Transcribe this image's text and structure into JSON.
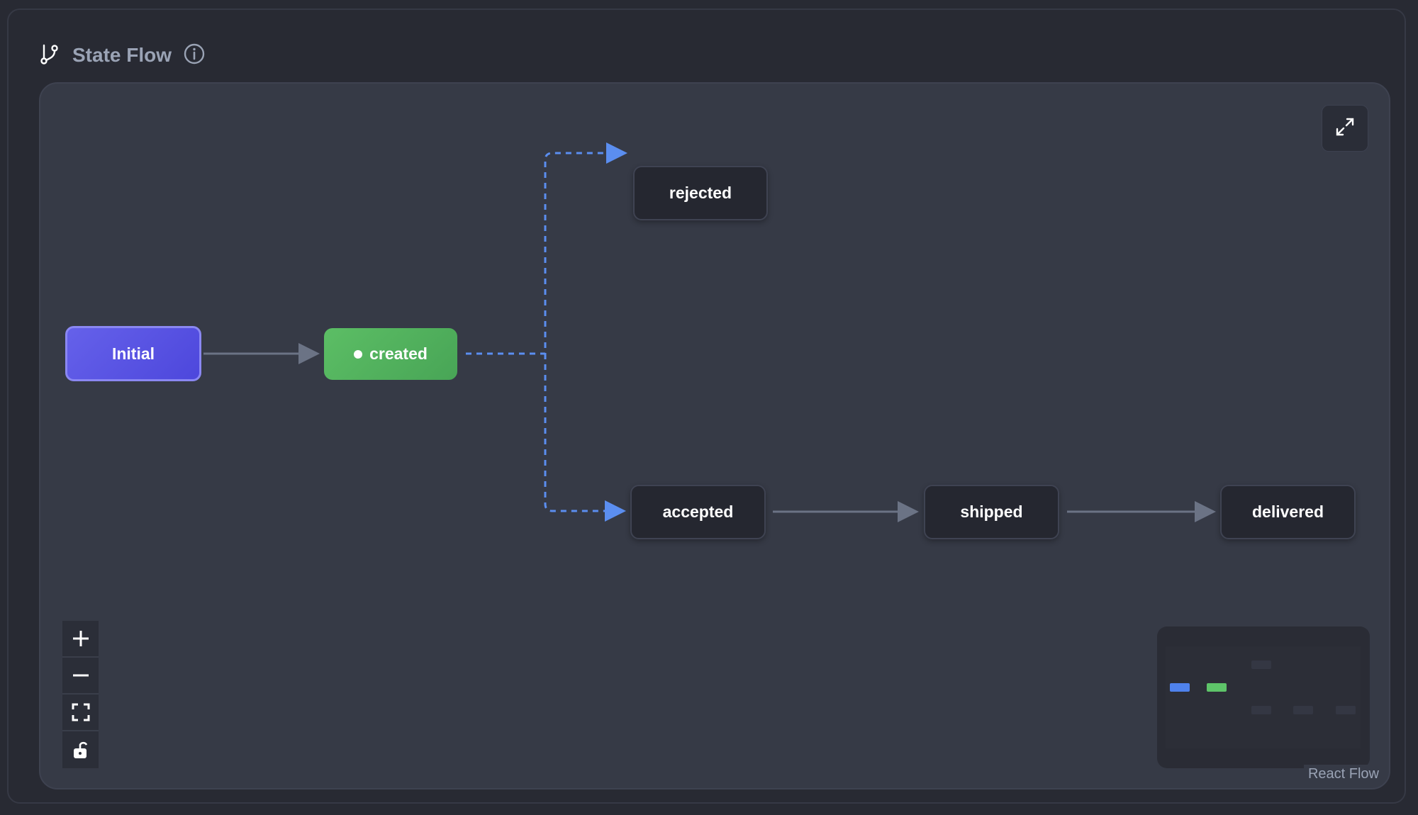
{
  "header": {
    "title": "State Flow",
    "icon": "git-branch-icon",
    "info_icon": "info-icon"
  },
  "nodes": [
    {
      "id": "initial",
      "label": "Initial",
      "color": "#5b57e3"
    },
    {
      "id": "created",
      "label": "created",
      "color": "#52b45e",
      "current": true
    },
    {
      "id": "rejected",
      "label": "rejected"
    },
    {
      "id": "accepted",
      "label": "accepted"
    },
    {
      "id": "shipped",
      "label": "shipped"
    },
    {
      "id": "delivered",
      "label": "delivered"
    }
  ],
  "edges": [
    {
      "from": "initial",
      "to": "created",
      "style": "solid"
    },
    {
      "from": "created",
      "to": "rejected",
      "style": "dashed",
      "color": "#5b8ef0"
    },
    {
      "from": "created",
      "to": "accepted",
      "style": "dashed",
      "color": "#5b8ef0"
    },
    {
      "from": "accepted",
      "to": "shipped",
      "style": "solid"
    },
    {
      "from": "shipped",
      "to": "delivered",
      "style": "solid"
    }
  ],
  "controls": [
    "zoom-in",
    "zoom-out",
    "fit-view",
    "toggle-interactivity"
  ],
  "attribution": "React Flow"
}
